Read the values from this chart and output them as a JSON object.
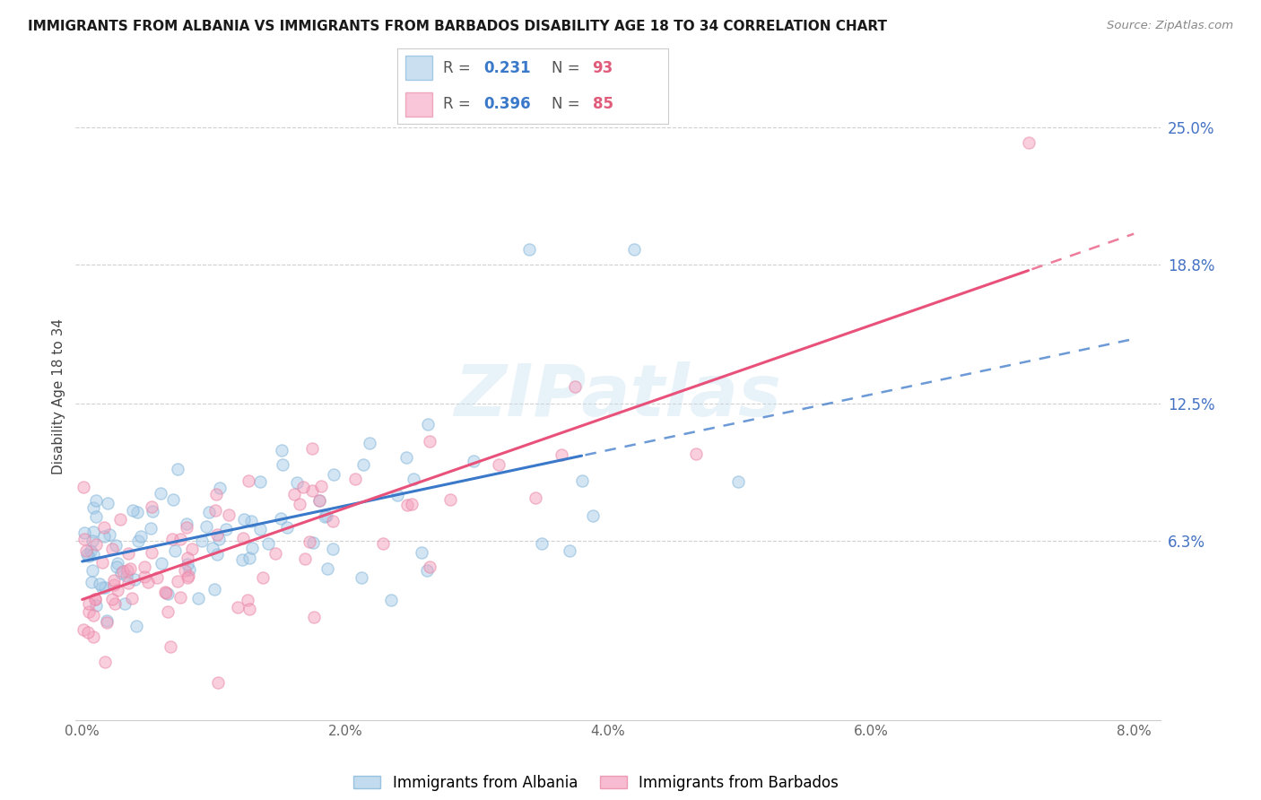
{
  "title": "IMMIGRANTS FROM ALBANIA VS IMMIGRANTS FROM BARBADOS DISABILITY AGE 18 TO 34 CORRELATION CHART",
  "source": "Source: ZipAtlas.com",
  "ylabel": "Disability Age 18 to 34",
  "ytick_labels": [
    "6.3%",
    "12.5%",
    "18.8%",
    "25.0%"
  ],
  "ytick_values": [
    0.063,
    0.125,
    0.188,
    0.25
  ],
  "xlim": [
    0.0,
    0.08
  ],
  "ylim": [
    -0.018,
    0.275
  ],
  "legend_albania_R": "0.231",
  "legend_albania_N": "93",
  "legend_barbados_R": "0.396",
  "legend_barbados_N": "85",
  "color_albania": "#a8cce8",
  "color_barbados": "#f4a0be",
  "color_albania_line": "#3a78c9",
  "color_barbados_line": "#e8517a",
  "color_albania_edge": "#7ab0d8",
  "color_barbados_edge": "#e880a0",
  "xtick_positions": [
    0.0,
    0.02,
    0.04,
    0.06,
    0.08
  ],
  "xtick_labels": [
    "0.0%",
    "2.0%",
    "4.0%",
    "6.0%",
    "8.0%"
  ],
  "legend_label_albania": "Immigrants from Albania",
  "legend_label_barbados": "Immigrants from Barbados",
  "watermark_text": "ZIPatlas",
  "n_albania": 93,
  "n_barbados": 85
}
